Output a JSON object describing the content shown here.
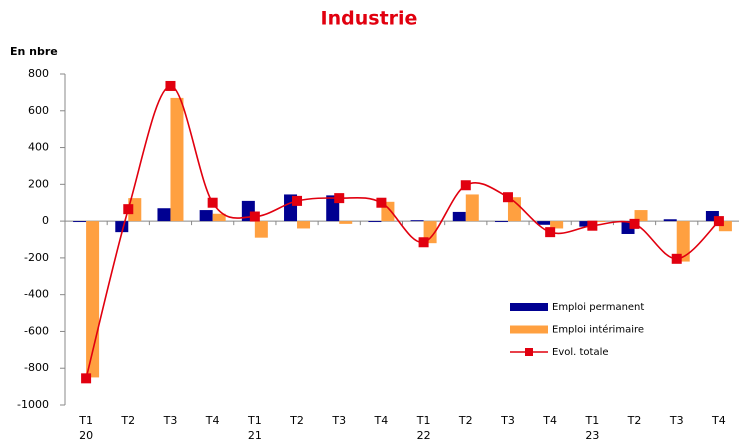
{
  "chart_data": {
    "type": "bar-line",
    "title": "Industrie",
    "y_label": "En nbre",
    "categories": [
      "T1",
      "T2",
      "T3",
      "T4",
      "T1",
      "T2",
      "T3",
      "T4",
      "T1",
      "T2",
      "T3",
      "T4",
      "T1",
      "T2",
      "T3",
      "T4"
    ],
    "year_labels": [
      "20",
      null,
      null,
      null,
      "21",
      null,
      null,
      null,
      "22",
      null,
      null,
      null,
      "23",
      null,
      null,
      null
    ],
    "series": [
      {
        "name": "Emploi permanent",
        "color": "#000091",
        "kind": "bar",
        "values": [
          -5,
          -60,
          70,
          60,
          110,
          145,
          140,
          -5,
          5,
          50,
          -5,
          -20,
          -30,
          -70,
          10,
          55
        ]
      },
      {
        "name": "Emploi intérimaire",
        "color": "#ffa040",
        "kind": "bar",
        "values": [
          -850,
          125,
          670,
          40,
          -90,
          -40,
          -15,
          105,
          -120,
          145,
          130,
          -40,
          -5,
          60,
          -220,
          -55
        ]
      },
      {
        "name": "Evol. totale",
        "color": "#e1000f",
        "kind": "line",
        "values": [
          -855,
          65,
          735,
          100,
          25,
          110,
          125,
          100,
          -115,
          195,
          130,
          -60,
          -25,
          -15,
          -205,
          0
        ]
      }
    ],
    "ylim": [
      -1000,
      800
    ],
    "yticks": [
      -1000,
      -800,
      -600,
      -400,
      -200,
      0,
      200,
      400,
      600,
      800
    ]
  }
}
